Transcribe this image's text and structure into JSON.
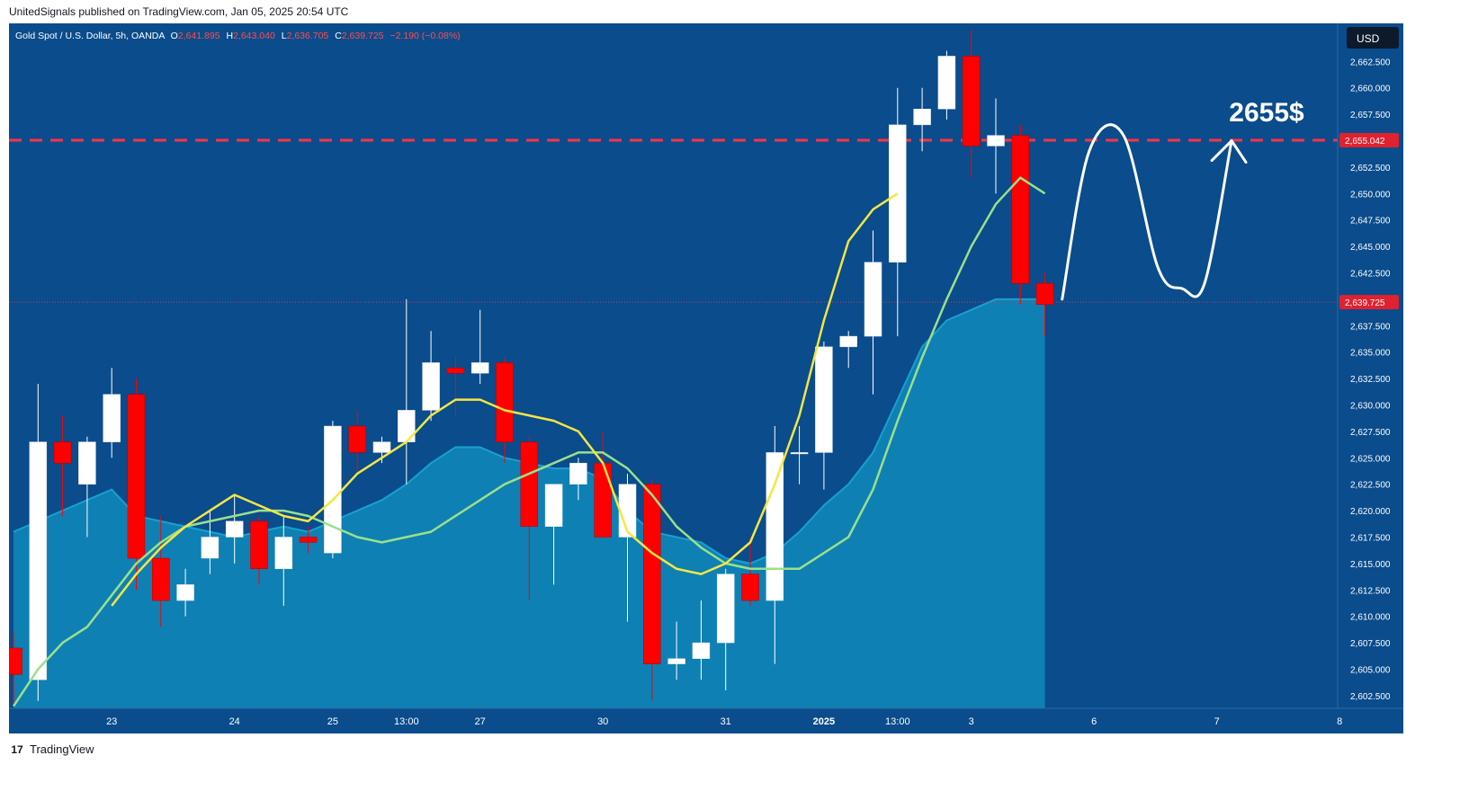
{
  "header": {
    "text": "UnitedSignals published on TradingView.com, Jan 05, 2025 20:54 UTC"
  },
  "legend": {
    "symbol": "Gold Spot / U.S. Dollar, 5h, OANDA",
    "o_label": "O",
    "o_value": "2,641.895",
    "h_label": "H",
    "h_value": "2,643.040",
    "l_label": "L",
    "l_value": "2,636.705",
    "c_label": "C",
    "c_value": "2,639.725",
    "change": "−2.190 (−0.08%)"
  },
  "currency_button": "USD",
  "annotation": {
    "text": "2655$"
  },
  "footer": {
    "brand": "TradingView"
  },
  "colors": {
    "background": "#0a4c8c",
    "up_candle": "#ffffff",
    "down_candle": "#ff0000",
    "ma_fast": "#f5e642",
    "ma_slow": "#9be08a",
    "area_fill": "#0e86b8",
    "target_line": "#ff3344",
    "price_tag": "#e0212f"
  },
  "chart_data": {
    "type": "candlestick",
    "yaxis": {
      "ylim": [
        2601.3,
        2666.1
      ],
      "ticks": [
        "2,602.500",
        "2,605.000",
        "2,607.500",
        "2,610.000",
        "2,612.500",
        "2,615.000",
        "2,617.500",
        "2,620.000",
        "2,622.500",
        "2,625.000",
        "2,627.500",
        "2,630.000",
        "2,632.500",
        "2,635.000",
        "2,637.500",
        "2,640.000",
        "2,642.500",
        "2,645.000",
        "2,647.500",
        "2,650.000",
        "2,652.500",
        "2,655.000",
        "2,657.500",
        "2,660.000",
        "2,662.500"
      ]
    },
    "xaxis": {
      "labels": [
        {
          "i": 4,
          "text": "23",
          "bold": false
        },
        {
          "i": 9,
          "text": "24",
          "bold": false
        },
        {
          "i": 13,
          "text": "25",
          "bold": false
        },
        {
          "i": 16,
          "text": "13:00",
          "bold": false
        },
        {
          "i": 19,
          "text": "27",
          "bold": false
        },
        {
          "i": 24,
          "text": "30",
          "bold": false
        },
        {
          "i": 29,
          "text": "31",
          "bold": false
        },
        {
          "i": 33,
          "text": "2025",
          "bold": true
        },
        {
          "i": 36,
          "text": "13:00",
          "bold": false
        },
        {
          "i": 39,
          "text": "3",
          "bold": false
        },
        {
          "i": 44,
          "text": "6",
          "bold": false
        },
        {
          "i": 49,
          "text": "7",
          "bold": false
        },
        {
          "i": 54,
          "text": "8",
          "bold": false
        }
      ]
    },
    "candles": [
      {
        "o": 2607.0,
        "h": 2608.5,
        "l": 2601.5,
        "c": 2604.5
      },
      {
        "o": 2604.0,
        "h": 2632.0,
        "l": 2602.0,
        "c": 2626.5
      },
      {
        "o": 2626.5,
        "h": 2629.0,
        "l": 2619.5,
        "c": 2624.5
      },
      {
        "o": 2622.5,
        "h": 2627.0,
        "l": 2617.5,
        "c": 2626.5
      },
      {
        "o": 2626.5,
        "h": 2633.5,
        "l": 2625.0,
        "c": 2631.0
      },
      {
        "o": 2631.0,
        "h": 2632.5,
        "l": 2612.5,
        "c": 2615.5
      },
      {
        "o": 2615.5,
        "h": 2619.5,
        "l": 2609.0,
        "c": 2611.5
      },
      {
        "o": 2611.5,
        "h": 2614.5,
        "l": 2610.0,
        "c": 2613.0
      },
      {
        "o": 2615.5,
        "h": 2620.0,
        "l": 2614.0,
        "c": 2617.5
      },
      {
        "o": 2617.5,
        "h": 2621.5,
        "l": 2615.0,
        "c": 2619.0
      },
      {
        "o": 2619.0,
        "h": 2619.5,
        "l": 2613.0,
        "c": 2614.5
      },
      {
        "o": 2614.5,
        "h": 2619.5,
        "l": 2611.0,
        "c": 2617.5
      },
      {
        "o": 2617.5,
        "h": 2618.5,
        "l": 2616.0,
        "c": 2617.0
      },
      {
        "o": 2616.0,
        "h": 2628.5,
        "l": 2615.5,
        "c": 2628.0
      },
      {
        "o": 2628.0,
        "h": 2629.5,
        "l": 2623.5,
        "c": 2625.5
      },
      {
        "o": 2625.5,
        "h": 2627.0,
        "l": 2624.5,
        "c": 2626.5
      },
      {
        "o": 2626.5,
        "h": 2640.0,
        "l": 2622.5,
        "c": 2629.5
      },
      {
        "o": 2629.5,
        "h": 2637.0,
        "l": 2628.5,
        "c": 2634.0
      },
      {
        "o": 2633.5,
        "h": 2634.5,
        "l": 2629.0,
        "c": 2633.0
      },
      {
        "o": 2633.0,
        "h": 2639.0,
        "l": 2632.0,
        "c": 2634.0
      },
      {
        "o": 2634.0,
        "h": 2634.5,
        "l": 2624.5,
        "c": 2626.5
      },
      {
        "o": 2626.5,
        "h": 2627.0,
        "l": 2611.5,
        "c": 2618.5
      },
      {
        "o": 2618.5,
        "h": 2622.5,
        "l": 2613.0,
        "c": 2622.5
      },
      {
        "o": 2622.5,
        "h": 2625.0,
        "l": 2621.0,
        "c": 2624.5
      },
      {
        "o": 2624.5,
        "h": 2627.5,
        "l": 2617.5,
        "c": 2617.5
      },
      {
        "o": 2617.5,
        "h": 2623.5,
        "l": 2609.5,
        "c": 2622.5
      },
      {
        "o": 2622.5,
        "h": 2623.0,
        "l": 2602.0,
        "c": 2605.5
      },
      {
        "o": 2605.5,
        "h": 2609.5,
        "l": 2604.0,
        "c": 2606.0
      },
      {
        "o": 2606.0,
        "h": 2611.5,
        "l": 2604.0,
        "c": 2607.5
      },
      {
        "o": 2607.5,
        "h": 2614.5,
        "l": 2603.0,
        "c": 2614.0
      },
      {
        "o": 2614.0,
        "h": 2617.5,
        "l": 2611.0,
        "c": 2611.5
      },
      {
        "o": 2611.5,
        "h": 2628.0,
        "l": 2605.5,
        "c": 2625.5
      },
      {
        "o": 2625.5,
        "h": 2628.0,
        "l": 2622.5,
        "c": 2625.5
      },
      {
        "o": 2625.5,
        "h": 2636.0,
        "l": 2622.0,
        "c": 2635.5
      },
      {
        "o": 2635.5,
        "h": 2637.0,
        "l": 2633.5,
        "c": 2636.5
      },
      {
        "o": 2636.5,
        "h": 2646.5,
        "l": 2631.0,
        "c": 2643.5
      },
      {
        "o": 2643.5,
        "h": 2660.0,
        "l": 2636.5,
        "c": 2656.5
      },
      {
        "o": 2656.5,
        "h": 2660.0,
        "l": 2654.0,
        "c": 2658.0
      },
      {
        "o": 2658.0,
        "h": 2663.5,
        "l": 2657.0,
        "c": 2663.0
      },
      {
        "o": 2663.0,
        "h": 2665.5,
        "l": 2651.5,
        "c": 2654.5
      },
      {
        "o": 2654.5,
        "h": 2659.0,
        "l": 2650.0,
        "c": 2655.5
      },
      {
        "o": 2655.5,
        "h": 2656.5,
        "l": 2639.5,
        "c": 2641.5
      },
      {
        "o": 2641.5,
        "h": 2642.5,
        "l": 2636.5,
        "c": 2639.5
      }
    ],
    "ma_fast": [
      null,
      null,
      null,
      null,
      2611.0,
      2614.0,
      2616.5,
      2618.5,
      2620.0,
      2621.5,
      2620.5,
      2619.5,
      2619.0,
      2621.0,
      2623.5,
      2625.0,
      2626.5,
      2629.0,
      2630.5,
      2630.5,
      2629.5,
      2629.0,
      2628.5,
      2627.5,
      2624.5,
      2618.0,
      2616.0,
      2614.5,
      2614.0,
      2615.0,
      2617.0,
      2622.5,
      2629.0,
      2638.0,
      2645.5,
      2648.5,
      2650.0,
      null,
      null,
      null,
      null,
      null,
      null
    ],
    "ma_slow": [
      2601.5,
      2605.0,
      2607.5,
      2609.0,
      2612.0,
      2615.0,
      2617.0,
      2618.5,
      2619.0,
      2619.5,
      2620.0,
      2620.0,
      2619.5,
      2618.5,
      2617.5,
      2617.0,
      2617.5,
      2618.0,
      2619.5,
      2621.0,
      2622.5,
      2623.5,
      2624.5,
      2625.5,
      2625.5,
      2624.0,
      2621.5,
      2618.5,
      2616.5,
      2615.0,
      2614.5,
      2614.5,
      2614.5,
      2616.0,
      2617.5,
      2622.0,
      2628.5,
      2634.5,
      2640.0,
      2645.0,
      2649.0,
      2651.5,
      2650.0
    ],
    "area": [
      2618.0,
      2619.0,
      2620.0,
      2621.0,
      2622.0,
      2619.5,
      2619.0,
      2618.5,
      2618.0,
      2617.5,
      2618.0,
      2618.5,
      2618.0,
      2619.0,
      2620.0,
      2621.0,
      2622.5,
      2624.5,
      2626.0,
      2626.0,
      2625.0,
      2624.5,
      2624.0,
      2624.0,
      2623.0,
      2620.0,
      2618.0,
      2617.5,
      2617.0,
      2615.5,
      2615.0,
      2616.0,
      2618.0,
      2620.5,
      2622.5,
      2625.5,
      2630.5,
      2635.5,
      2638.0,
      2639.0,
      2640.0,
      2640.0,
      2640.0
    ],
    "horizontal_levels": [
      {
        "price": 2655.042,
        "label": "2,655.042",
        "style": "dashed"
      },
      {
        "price": 2639.725,
        "label": "2,639.725",
        "style": "dotted"
      }
    ],
    "projection": [
      [
        42.7,
        2640.0
      ],
      [
        43.8,
        2654.0
      ],
      [
        45.2,
        2655.5
      ],
      [
        46.6,
        2643.0
      ],
      [
        47.6,
        2641.0
      ],
      [
        48.5,
        2641.5
      ],
      [
        49.6,
        2655.0
      ]
    ]
  }
}
